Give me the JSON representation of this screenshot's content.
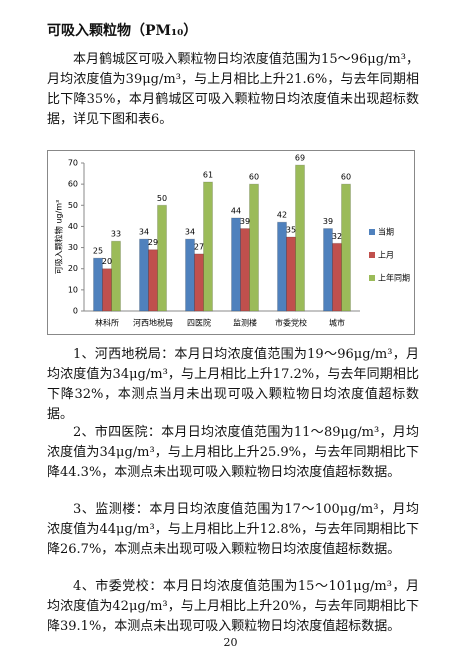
{
  "heading": "可吸入颗粒物（PM₁₀）",
  "paragraphs": [
    "本月鹤城区可吸入颗粒物日均浓度值范围为15～96μg/m³，月均浓度值为39μg/m³，与上月相比上升21.6%，与去年同期相比下降35%，本月鹤城区可吸入颗粒物日均浓度值未出现超标数据，详见下图和表6。",
    "1、河西地税局：本月日均浓度值范围为19～96μg/m³，月均浓度值为34μg/m³，与上月相比上升17.2%，与去年同期相比下降32%，本测点当月未出现可吸入颗粒物日均浓度值超标数据。",
    "2、市四医院：本月日均浓度值范围为11～89μg/m³，月均浓度值为34μg/m³，与上月相比上升25.9%，与去年同期相比下降44.3%，本测点未出现可吸入颗粒物日均浓度值超标数据。",
    "3、监测楼：本月日均浓度值范围为17～100μg/m³，月均浓度值为44μg/m³，与上月相比上升12.8%，与去年同期相比下降26.7%，本测点未出现可吸入颗粒物日均浓度值超标数据。",
    "4、市委党校：本月日均浓度值范围为15～101μg/m³，月均浓度值为42μg/m³，与上月相比上升20%，与去年同期相比下降39.1%，本测点未出现可吸入颗粒物日均浓度值超标数据。"
  ],
  "page_number": 20,
  "chart_data": {
    "type": "bar",
    "y_label": "可吸入颗粒物 ug/m³",
    "categories": [
      "林科所",
      "河西地税局",
      "四医院",
      "监测楼",
      "市委党校",
      "城市"
    ],
    "series": [
      {
        "name": "当期",
        "color": "#4f81bd",
        "values": [
          25,
          34,
          34,
          44,
          42,
          39
        ]
      },
      {
        "name": "上月",
        "color": "#c0504d",
        "values": [
          20,
          29,
          27,
          39,
          35,
          32
        ]
      },
      {
        "name": "上年同期",
        "color": "#9bbb59",
        "values": [
          33,
          50,
          61,
          60,
          69,
          60
        ]
      }
    ],
    "ylim": [
      0,
      70
    ],
    "yticks": [
      0,
      10,
      20,
      30,
      40,
      50,
      60,
      70
    ],
    "grid": false,
    "legend": "right"
  }
}
